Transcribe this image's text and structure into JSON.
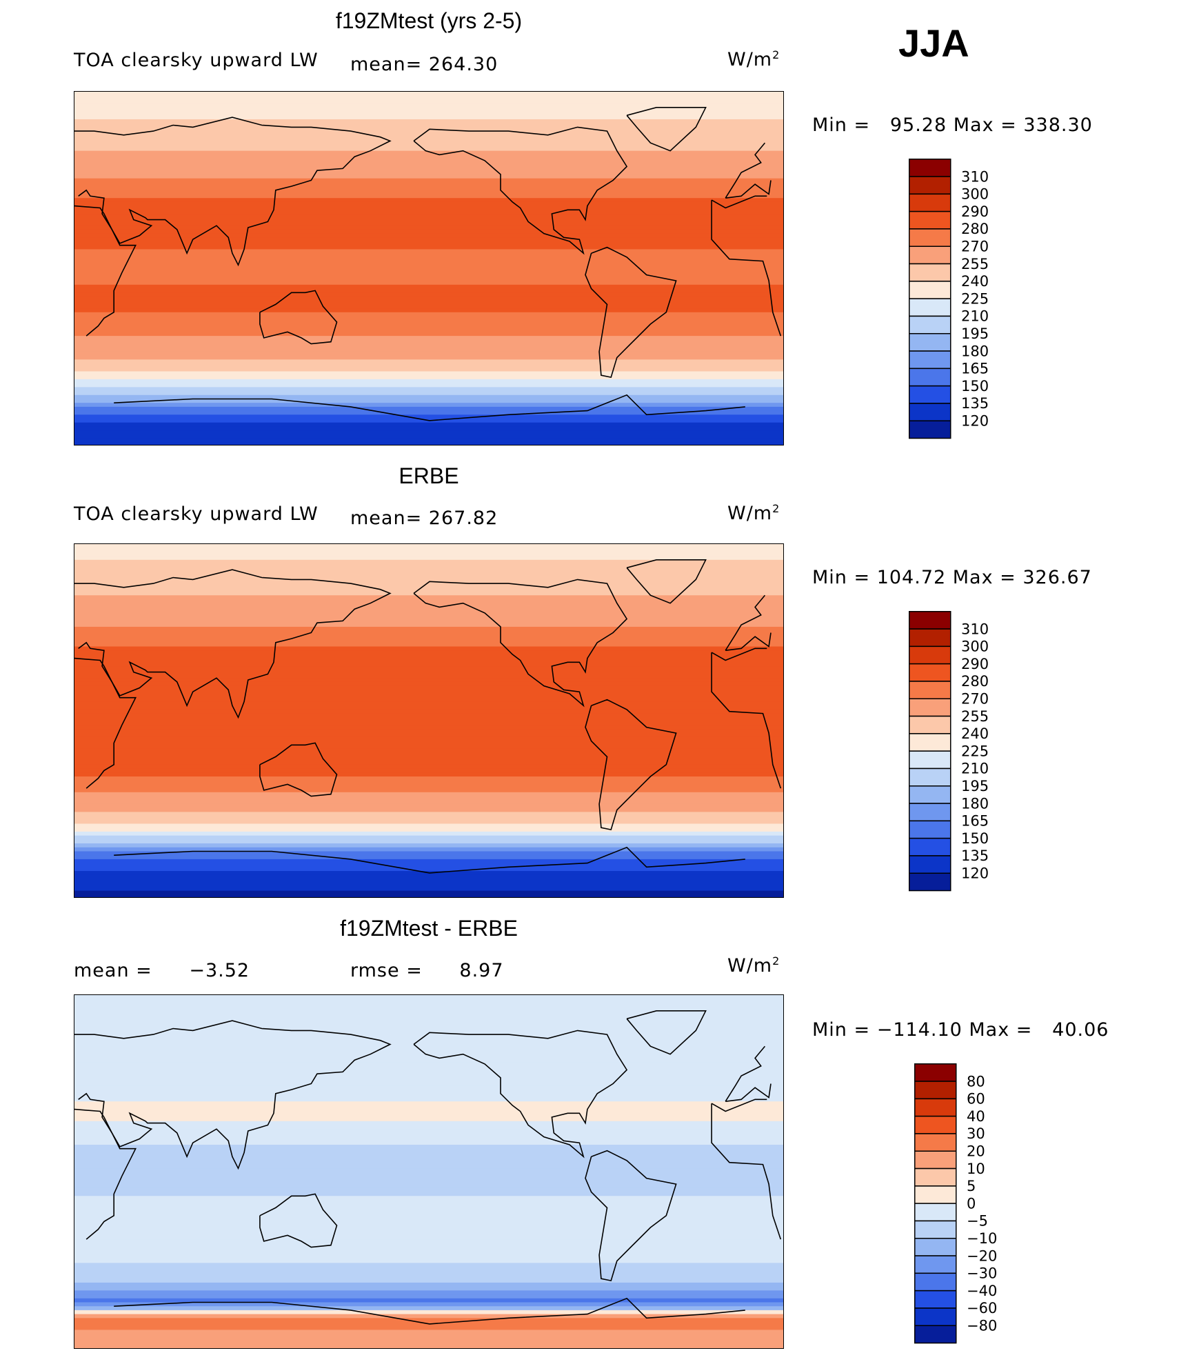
{
  "season": "JJA",
  "units": "W/m",
  "units_sup": "2",
  "panels": [
    {
      "title": "f19ZMtest (yrs 2-5)",
      "left_label": "TOA clearsky upward LW",
      "stat_label": "mean=",
      "stat_value": "264.30",
      "minmax_text": "Min =   95.28 Max = 338.30"
    },
    {
      "title": "ERBE",
      "left_label": "TOA clearsky upward LW",
      "stat_label": "mean=",
      "stat_value": "267.82",
      "minmax_text": "Min = 104.72 Max = 326.67"
    },
    {
      "title": "f19ZMtest - ERBE",
      "left_label": "mean =",
      "left_value": "−3.52",
      "stat_label": "rmse =",
      "stat_value": "8.97",
      "minmax_text": "Min = −114.10 Max =   40.06"
    }
  ],
  "chart_data": [
    {
      "type": "heatmap",
      "title": "f19ZMtest (yrs 2-5)",
      "subtitle": "TOA clearsky upward LW",
      "mean": 264.3,
      "min": 95.28,
      "max": 338.3,
      "colorbar_levels": [
        310,
        300,
        290,
        280,
        270,
        255,
        240,
        225,
        210,
        195,
        180,
        165,
        150,
        135,
        120
      ],
      "colorbar_colors": [
        "#8b0000",
        "#b22000",
        "#d83a0c",
        "#ee5520",
        "#f57a48",
        "#f9a07a",
        "#fcc8aa",
        "#fde9d8",
        "#d9e8f8",
        "#b9d2f6",
        "#94b6f2",
        "#6f97ef",
        "#4b76ea",
        "#2450e4",
        "#0c35c8",
        "#061e9a"
      ],
      "zonal_profile_lat": [
        90,
        75,
        60,
        45,
        30,
        15,
        0,
        -15,
        -30,
        -45,
        -55,
        -65,
        -75,
        -90
      ],
      "zonal_profile_value": [
        235,
        240,
        255,
        270,
        285,
        283,
        275,
        285,
        275,
        255,
        230,
        190,
        140,
        120
      ]
    },
    {
      "type": "heatmap",
      "title": "ERBE",
      "subtitle": "TOA clearsky upward LW",
      "mean": 267.82,
      "min": 104.72,
      "max": 326.67,
      "colorbar_levels": [
        310,
        300,
        290,
        280,
        270,
        255,
        240,
        225,
        210,
        195,
        180,
        165,
        150,
        135,
        120
      ],
      "colorbar_colors": [
        "#8b0000",
        "#b22000",
        "#d83a0c",
        "#ee5520",
        "#f57a48",
        "#f9a07a",
        "#fcc8aa",
        "#fde9d8",
        "#d9e8f8",
        "#b9d2f6",
        "#94b6f2",
        "#6f97ef",
        "#4b76ea",
        "#2450e4",
        "#0c35c8",
        "#061e9a"
      ],
      "zonal_profile_lat": [
        90,
        75,
        60,
        45,
        30,
        15,
        0,
        -15,
        -30,
        -45,
        -55,
        -65,
        -75,
        -90
      ],
      "zonal_profile_value": [
        235,
        245,
        258,
        272,
        288,
        285,
        280,
        288,
        278,
        258,
        235,
        170,
        135,
        115
      ]
    },
    {
      "type": "heatmap",
      "title": "f19ZMtest - ERBE",
      "mean": -3.52,
      "rmse": 8.97,
      "min": -114.1,
      "max": 40.06,
      "colorbar_levels": [
        80,
        60,
        40,
        30,
        20,
        10,
        5,
        0,
        -5,
        -10,
        -20,
        -30,
        -40,
        -60,
        -80
      ],
      "colorbar_colors": [
        "#8b0000",
        "#b22000",
        "#d83a0c",
        "#ee5520",
        "#f57a48",
        "#f9a07a",
        "#fcc8aa",
        "#fde9d8",
        "#d9e8f8",
        "#b9d2f6",
        "#94b6f2",
        "#6f97ef",
        "#4b76ea",
        "#2450e4",
        "#0c35c8",
        "#061e9a"
      ],
      "zonal_profile_lat": [
        90,
        75,
        60,
        45,
        30,
        15,
        0,
        -15,
        -30,
        -45,
        -55,
        -65,
        -75,
        -90
      ],
      "zonal_profile_value": [
        0,
        -3,
        -5,
        -4,
        2,
        -5,
        -8,
        -4,
        -3,
        -5,
        -8,
        -35,
        25,
        10
      ]
    }
  ]
}
